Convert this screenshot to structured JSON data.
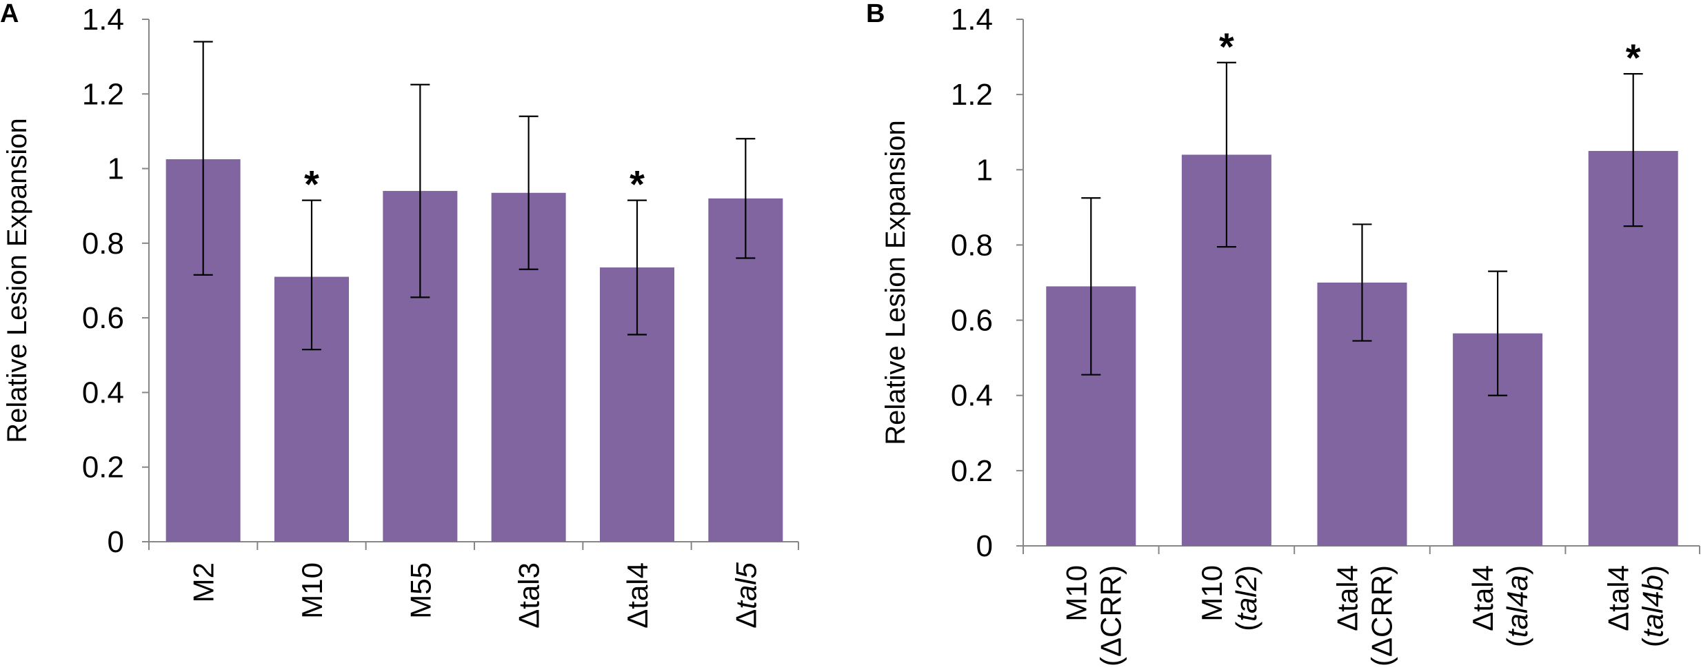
{
  "chart_data": [
    {
      "panel": "A",
      "type": "bar",
      "ylabel": "Relative Lesion Expansion",
      "ylim": [
        0,
        1.4
      ],
      "yticks": [
        "0",
        "0.2",
        "0.4",
        "0.6",
        "0.8",
        "1",
        "1.2",
        "1.4"
      ],
      "categories": [
        {
          "lines": [
            [
              {
                "t": "M2"
              }
            ]
          ]
        },
        {
          "lines": [
            [
              {
                "t": "M10"
              }
            ]
          ]
        },
        {
          "lines": [
            [
              {
                "t": "M55"
              }
            ]
          ]
        },
        {
          "lines": [
            [
              {
                "t": "Δtal3"
              }
            ]
          ]
        },
        {
          "lines": [
            [
              {
                "t": "Δtal4"
              }
            ]
          ]
        },
        {
          "lines": [
            [
              {
                "t": "Δ"
              },
              {
                "t": "tal5",
                "i": true
              }
            ]
          ]
        }
      ],
      "values": [
        1.025,
        0.71,
        0.94,
        0.935,
        0.735,
        0.92
      ],
      "error_low": [
        0.715,
        0.515,
        0.655,
        0.73,
        0.555,
        0.76
      ],
      "error_high": [
        1.34,
        0.915,
        1.225,
        1.14,
        0.915,
        1.08
      ],
      "significance": [
        "",
        "*",
        "",
        "",
        "*",
        ""
      ],
      "bar_color": "#8065A1"
    },
    {
      "panel": "B",
      "type": "bar",
      "ylabel": "Relative Lesion Expansion",
      "ylim": [
        0,
        1.4
      ],
      "yticks": [
        "0",
        "0.2",
        "0.4",
        "0.6",
        "0.8",
        "1",
        "1.2",
        "1.4"
      ],
      "categories": [
        {
          "lines": [
            [
              {
                "t": "M10"
              }
            ],
            [
              {
                "t": "(ΔCRR)"
              }
            ]
          ]
        },
        {
          "lines": [
            [
              {
                "t": "M10"
              }
            ],
            [
              {
                "t": "("
              },
              {
                "t": "tal2",
                "i": true
              },
              {
                "t": ")"
              }
            ]
          ]
        },
        {
          "lines": [
            [
              {
                "t": "Δtal4"
              }
            ],
            [
              {
                "t": "(ΔCRR)"
              }
            ]
          ]
        },
        {
          "lines": [
            [
              {
                "t": "Δtal4"
              }
            ],
            [
              {
                "t": "("
              },
              {
                "t": "tal4a",
                "i": true
              },
              {
                "t": ")"
              }
            ]
          ]
        },
        {
          "lines": [
            [
              {
                "t": "Δtal4"
              }
            ],
            [
              {
                "t": "("
              },
              {
                "t": "tal4b",
                "i": true
              },
              {
                "t": ")"
              }
            ]
          ]
        }
      ],
      "values": [
        0.69,
        1.04,
        0.7,
        0.565,
        1.05
      ],
      "error_low": [
        0.455,
        0.795,
        0.545,
        0.4,
        0.85
      ],
      "error_high": [
        0.925,
        1.285,
        0.855,
        0.73,
        1.255
      ],
      "significance": [
        "",
        "*",
        "",
        "",
        "*"
      ],
      "bar_color": "#8065A1"
    }
  ]
}
